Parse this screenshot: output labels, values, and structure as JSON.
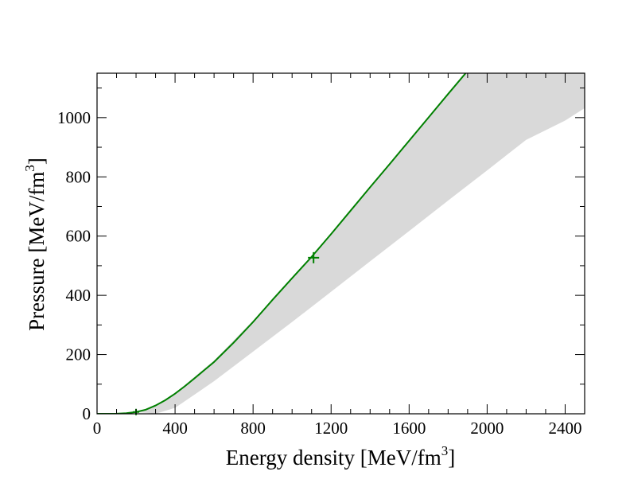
{
  "chart_data": {
    "type": "line",
    "xlabel": "Energy density [MeV/fm",
    "xlabel_sup": "3",
    "xlabel_end": "]",
    "ylabel": "Pressure [MeV/fm",
    "ylabel_sup": "3",
    "ylabel_end": "]",
    "xlim": [
      0,
      2500
    ],
    "ylim": [
      0,
      1150
    ],
    "x_major_ticks": [
      0,
      400,
      800,
      1200,
      1600,
      2000,
      2400
    ],
    "x_tick_labels": [
      "0",
      "400",
      "800",
      "1200",
      "1600",
      "2000",
      "2400"
    ],
    "x_minor_step": 100,
    "y_major_ticks": [
      0,
      200,
      400,
      600,
      800,
      1000
    ],
    "y_tick_labels": [
      "0",
      "200",
      "400",
      "600",
      "800",
      "1000"
    ],
    "y_minor_step": 100,
    "grid": false,
    "colors": {
      "curve": "#008000",
      "band": "#d9d9d9",
      "axes": "#000000"
    },
    "series": [
      {
        "kind": "curve",
        "x": [
          0,
          100,
          150,
          200,
          250,
          300,
          350,
          400,
          450,
          500,
          600,
          700,
          800,
          900,
          1000,
          1100,
          1200,
          1300,
          1400,
          1500,
          1600,
          1700,
          1800,
          1900
        ],
        "y": [
          0,
          0.5,
          2,
          6,
          14,
          28,
          46,
          68,
          93,
          120,
          175,
          240,
          310,
          385,
          458,
          530,
          607,
          686,
          765,
          843,
          922,
          1001,
          1080,
          1158
        ]
      },
      {
        "kind": "band",
        "upper_x": [
          200,
          300,
          400,
          600,
          800,
          1000,
          1100,
          1200,
          1400,
          1600,
          1800,
          1900,
          2000,
          2100,
          2200,
          2300,
          2400,
          2500
        ],
        "upper_y": [
          6,
          28,
          70,
          180,
          315,
          458,
          530,
          607,
          765,
          922,
          1080,
          1158,
          1150,
          1150,
          1150,
          1150,
          1150,
          1150
        ],
        "lower_x": [
          300,
          400,
          600,
          800,
          1000,
          1200,
          1400,
          1600,
          1800,
          2000,
          2200,
          2400,
          2500
        ],
        "lower_y": [
          0,
          20,
          110,
          210,
          310,
          412,
          515,
          617,
          720,
          822,
          925,
          990,
          1032
        ]
      },
      {
        "kind": "marker",
        "symbol": "+",
        "x": [
          1110
        ],
        "y": [
          527
        ]
      },
      {
        "kind": "marker",
        "symbol": "+",
        "x": [
          200
        ],
        "y": [
          6
        ]
      }
    ]
  }
}
